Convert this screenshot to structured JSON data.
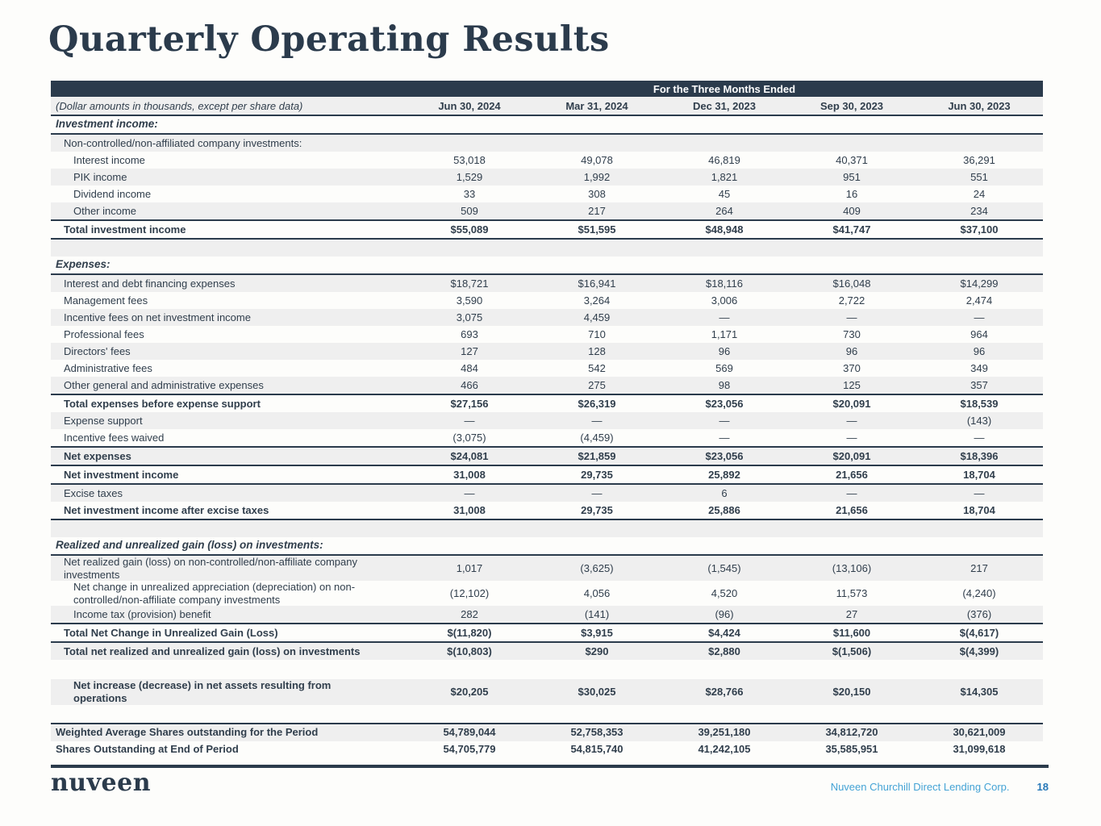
{
  "page": {
    "title": "Quarterly Operating Results"
  },
  "colors": {
    "navy": "#2b3b4c",
    "shaded_row": "#efefef",
    "footer_company_blue": "#44a3d5",
    "page_number_blue": "#2879b8"
  },
  "table": {
    "spanner": "For the Three Months Ended",
    "subtitle": "(Dollar amounts in thousands, except per share data)",
    "columns": [
      "Jun 30, 2024",
      "Mar 31, 2024",
      "Dec 31, 2023",
      "Sep 30, 2023",
      "Jun 30, 2023"
    ],
    "rows": [
      {
        "label": "Investment income:",
        "cls": "section",
        "borders": "bottom"
      },
      {
        "label": "Non-controlled/non-affiliated company investments:",
        "indent": 1,
        "shaded": true
      },
      {
        "label": "Interest income",
        "indent": 2,
        "values": [
          "53,018",
          "49,078",
          "46,819",
          "40,371",
          "36,291"
        ]
      },
      {
        "label": "PIK income",
        "indent": 2,
        "shaded": true,
        "values": [
          "1,529",
          "1,992",
          "1,821",
          "951",
          "551"
        ]
      },
      {
        "label": "Dividend income",
        "indent": 2,
        "values": [
          "33",
          "308",
          "45",
          "16",
          "24"
        ]
      },
      {
        "label": "Other income",
        "indent": 2,
        "shaded": true,
        "values": [
          "509",
          "217",
          "264",
          "409",
          "234"
        ]
      },
      {
        "label": "Total investment income",
        "cls": "total",
        "indent": 1,
        "borders": "top bottom",
        "values": [
          "$55,089",
          "$51,595",
          "$48,948",
          "$41,747",
          "$37,100"
        ]
      },
      {
        "cls": "blank",
        "shaded": true
      },
      {
        "label": "Expenses:",
        "cls": "section",
        "borders": "bottom"
      },
      {
        "label": "Interest and debt financing expenses",
        "indent": 1,
        "shaded": true,
        "values": [
          "$18,721",
          "$16,941",
          "$18,116",
          "$16,048",
          "$14,299"
        ]
      },
      {
        "label": "Management fees",
        "indent": 1,
        "values": [
          "3,590",
          "3,264",
          "3,006",
          "2,722",
          "2,474"
        ]
      },
      {
        "label": "Incentive fees on net investment income",
        "indent": 1,
        "shaded": true,
        "values": [
          "3,075",
          "4,459",
          "—",
          "—",
          "—"
        ]
      },
      {
        "label": "Professional fees",
        "indent": 1,
        "values": [
          "693",
          "710",
          "1,171",
          "730",
          "964"
        ]
      },
      {
        "label": "Directors' fees",
        "indent": 1,
        "shaded": true,
        "values": [
          "127",
          "128",
          "96",
          "96",
          "96"
        ]
      },
      {
        "label": "Administrative fees",
        "indent": 1,
        "values": [
          "484",
          "542",
          "569",
          "370",
          "349"
        ]
      },
      {
        "label": "Other general and administrative expenses",
        "indent": 1,
        "shaded": true,
        "values": [
          "466",
          "275",
          "98",
          "125",
          "357"
        ]
      },
      {
        "label": "Total expenses before expense support",
        "cls": "total",
        "indent": 1,
        "borders": "top",
        "values": [
          "$27,156",
          "$26,319",
          "$23,056",
          "$20,091",
          "$18,539"
        ]
      },
      {
        "label": "Expense support",
        "indent": 1,
        "shaded": true,
        "values": [
          "—",
          "—",
          "—",
          "—",
          "(143)"
        ]
      },
      {
        "label": "Incentive fees waived",
        "indent": 1,
        "values": [
          "(3,075)",
          "(4,459)",
          "—",
          "—",
          "—"
        ]
      },
      {
        "label": "Net expenses",
        "cls": "total",
        "indent": 1,
        "shaded": true,
        "borders": "top bottom",
        "values": [
          "$24,081",
          "$21,859",
          "$23,056",
          "$20,091",
          "$18,396"
        ]
      },
      {
        "label": "Net investment income",
        "cls": "total",
        "indent": 1,
        "borders": "bottom",
        "values": [
          "31,008",
          "29,735",
          "25,892",
          "21,656",
          "18,704"
        ]
      },
      {
        "label": "Excise taxes",
        "indent": 1,
        "shaded": true,
        "values": [
          "—",
          "—",
          "6",
          "—",
          "—"
        ]
      },
      {
        "label": "Net investment income after excise taxes",
        "cls": "total",
        "indent": 1,
        "borders": "bottom",
        "values": [
          "31,008",
          "29,735",
          "25,886",
          "21,656",
          "18,704"
        ]
      },
      {
        "cls": "blank",
        "shaded": true
      },
      {
        "label": "Realized and unrealized gain (loss) on investments:",
        "cls": "section",
        "borders": "bottom"
      },
      {
        "label": "Net realized gain (loss) on non-controlled/non-affiliate company investments",
        "indent": 1,
        "shaded": true,
        "values": [
          "1,017",
          "(3,625)",
          "(1,545)",
          "(13,106)",
          "217"
        ]
      },
      {
        "label": "Net change in unrealized appreciation (depreciation) on non-controlled/non-affiliate company investments",
        "indent": 2,
        "values": [
          "(12,102)",
          "4,056",
          "4,520",
          "11,573",
          "(4,240)"
        ]
      },
      {
        "label": "Income tax (provision) benefit",
        "indent": 2,
        "shaded": true,
        "values": [
          "282",
          "(141)",
          "(96)",
          "27",
          "(376)"
        ]
      },
      {
        "label": "Total Net Change in Unrealized Gain (Loss)",
        "cls": "total",
        "indent": 1,
        "borders": "top",
        "values": [
          "$(11,820)",
          "$3,915",
          "$4,424",
          "$11,600",
          "$(4,617)"
        ]
      },
      {
        "label": "Total net realized and unrealized gain (loss) on investments",
        "cls": "total",
        "indent": 1,
        "shaded": true,
        "borders": "top",
        "values": [
          "$(10,803)",
          "$290",
          "$2,880",
          "$(1,506)",
          "$(4,399)"
        ]
      },
      {
        "cls": "blank",
        "h": 24
      },
      {
        "label": "Net increase (decrease) in net assets resulting from operations",
        "cls": "total",
        "indent": 2,
        "shaded": true,
        "values": [
          "$20,205",
          "$30,025",
          "$28,766",
          "$20,150",
          "$14,305"
        ]
      },
      {
        "cls": "blank",
        "h": 22
      },
      {
        "label": "Weighted Average Shares outstanding for the Period",
        "cls": "total",
        "shaded": true,
        "borders": "top",
        "values": [
          "54,789,044",
          "52,758,353",
          "39,251,180",
          "34,812,720",
          "30,621,009"
        ]
      },
      {
        "label": "Shares Outstanding at End of Period",
        "cls": "total",
        "values": [
          "54,705,779",
          "54,815,740",
          "41,242,105",
          "35,585,951",
          "31,099,618"
        ]
      }
    ]
  },
  "footer": {
    "logo": "nuveen",
    "company": "Nuveen Churchill Direct Lending Corp.",
    "page_number": "18"
  }
}
